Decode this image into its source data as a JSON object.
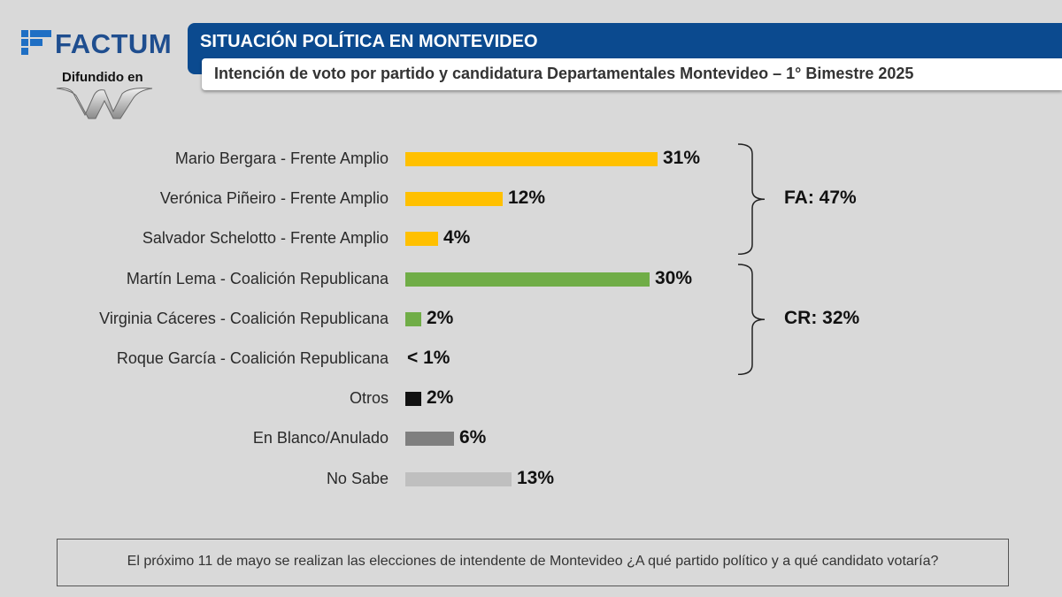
{
  "brand": {
    "name": "FACTUM",
    "spread_label": "Difundido en",
    "mark_color": "#1f6fc4",
    "text_color": "#1f4e8f"
  },
  "header": {
    "title": "SITUACIÓN POLÍTICA EN MONTEVIDEO",
    "subtitle": "Intención de voto por partido y candidatura Departamentales Montevideo – 1° Bimestre 2025",
    "title_bg": "#0b4a8f"
  },
  "chart_data": {
    "type": "bar",
    "orientation": "horizontal",
    "categories": [
      "Mario Bergara - Frente Amplio",
      "Verónica Piñeiro - Frente Amplio",
      "Salvador Schelotto - Frente Amplio",
      "Martín Lema - Coalición Republicana",
      "Virginia Cáceres - Coalición Republicana",
      "Roque García - Coalición Republicana",
      "Otros",
      "En Blanco/Anulado",
      "No Sabe"
    ],
    "values": [
      31,
      12,
      4,
      30,
      2,
      0.5,
      2,
      6,
      13
    ],
    "value_labels": [
      "31%",
      "12%",
      "4%",
      "30%",
      "2%",
      "< 1%",
      "2%",
      "6%",
      "13%"
    ],
    "colors": [
      "#ffc000",
      "#ffc000",
      "#ffc000",
      "#70ad47",
      "#70ad47",
      "#70ad47",
      "#111111",
      "#7f7f7f",
      "#bfbfbf"
    ],
    "groups": [
      {
        "label": "FA: 47%",
        "start_index": 0,
        "end_index": 2
      },
      {
        "label": "CR: 32%",
        "start_index": 3,
        "end_index": 5
      }
    ],
    "xlim": [
      0,
      35
    ],
    "grid": false,
    "legend": "none"
  },
  "footer": {
    "question": "El próximo 11 de mayo se realizan las elecciones de intendente de Montevideo ¿A qué partido político y a qué candidato votaría?"
  }
}
